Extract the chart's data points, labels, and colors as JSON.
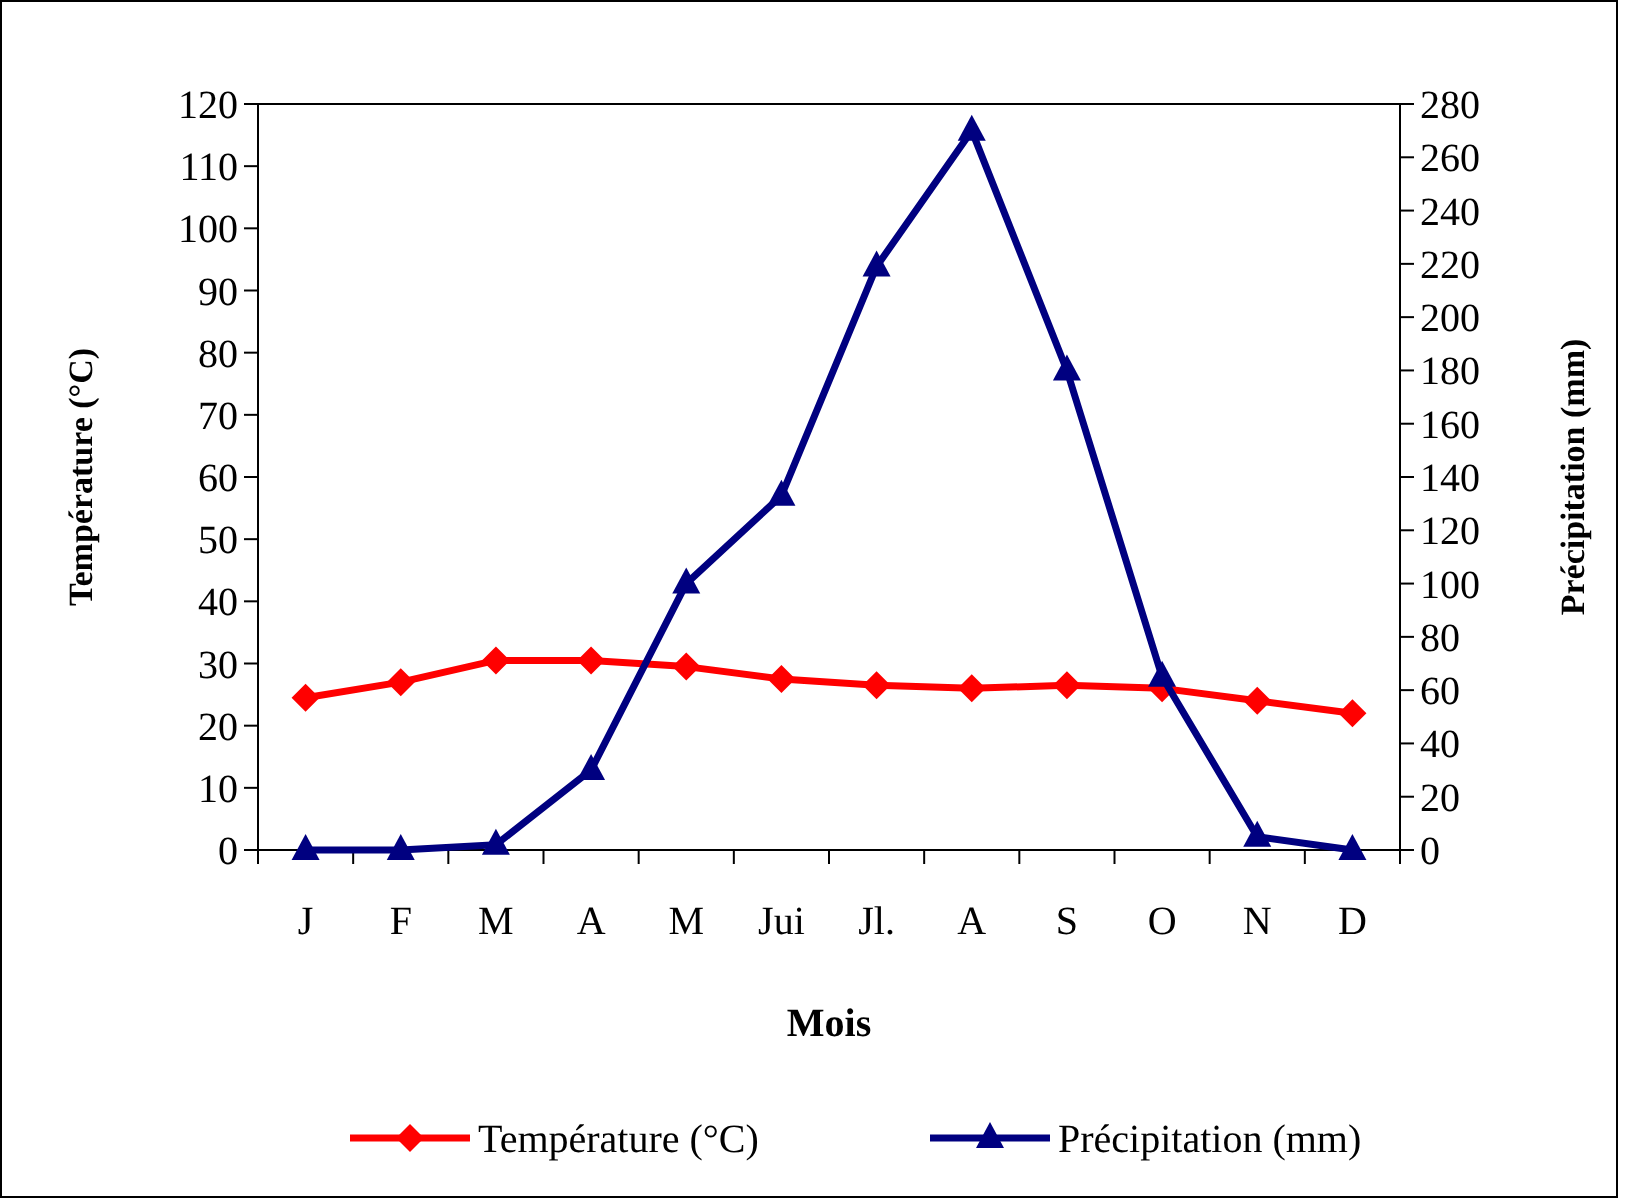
{
  "chart_data": {
    "type": "line",
    "xlabel": "Mois",
    "ylabel": "Température (°C)",
    "y2label": "Précipitation (mm)",
    "categories": [
      "J",
      "F",
      "M",
      "A",
      "M",
      "Jui",
      "Jl.",
      "A",
      "S",
      "O",
      "N",
      "D"
    ],
    "series": [
      {
        "name": "Température (°C)",
        "color": "#ff0000",
        "marker": "diamond",
        "values": [
          24.5,
          27,
          30.5,
          30.5,
          29.5,
          27.5,
          26.5,
          26,
          26.5,
          26,
          24,
          22
        ]
      },
      {
        "name": "Précipitation (mm)",
        "color": "#000080",
        "marker": "triangle",
        "axis": "y2",
        "values": [
          0,
          0,
          2,
          30,
          100,
          133,
          219,
          270,
          180,
          65,
          5,
          0
        ]
      }
    ],
    "ylim": [
      0,
      120
    ],
    "yticks": [
      0,
      10,
      20,
      30,
      40,
      50,
      60,
      70,
      80,
      90,
      100,
      110,
      120
    ],
    "y2lim": [
      0,
      280
    ],
    "y2ticks": [
      0,
      20,
      40,
      60,
      80,
      100,
      120,
      140,
      160,
      180,
      200,
      220,
      240,
      260,
      280
    ],
    "grid": false,
    "legend": "bottom"
  }
}
